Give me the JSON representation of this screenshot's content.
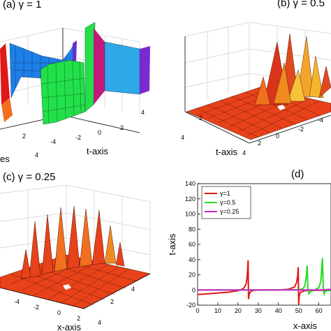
{
  "chart_data": [
    {
      "panel": "a",
      "type": "surface",
      "title": "(a) γ = 1",
      "ylabel": "t-axis",
      "xlabel_fragment": "es",
      "y_ticks": [
        "-4",
        "-2",
        "0",
        "2",
        "4"
      ],
      "x_ticks_visible": [
        "2",
        "4"
      ],
      "colors": {
        "green": "#22e04a",
        "blue": "#1e7fe6",
        "red": "#e01818"
      }
    },
    {
      "panel": "b",
      "type": "surface",
      "title": "(b) γ = 0.5",
      "ylabel": "t-axis",
      "y_ticks": [
        "-4",
        "-2",
        "0",
        "2",
        "4"
      ],
      "x_ticks_visible": [
        "2",
        "4"
      ],
      "colors": {
        "surface": "#e8421a",
        "peak": "#f5b52a"
      }
    },
    {
      "panel": "c",
      "type": "surface",
      "title": "(c) γ = 0.25",
      "xlabel": "x-axis",
      "x_ticks": [
        "-4",
        "-2",
        "0",
        "2",
        "4"
      ],
      "y_ticks_visible": [
        "2",
        "4"
      ],
      "colors": {
        "surface": "#e8421a",
        "peak": "#f07020"
      }
    },
    {
      "panel": "d",
      "type": "line",
      "title": "(d)",
      "xlabel": "x-axis",
      "ylabel": "t-axis",
      "y_ticks": [
        -20,
        0,
        20,
        40,
        60,
        80,
        100,
        120,
        140
      ],
      "x_ticks": [
        0,
        10,
        20,
        30,
        40,
        50,
        60
      ],
      "ylim": [
        -20,
        140
      ],
      "xlim": [
        0,
        66
      ],
      "legend": "top-left",
      "series": [
        {
          "name": "γ=1",
          "color": "#e01818",
          "x": [
            0,
            5,
            10,
            15,
            20,
            22,
            23,
            24,
            24.5,
            24.8,
            25.0,
            25.2,
            25.5,
            26,
            27,
            28,
            30,
            35,
            40,
            45,
            48,
            49,
            49.5,
            49.8,
            50.0,
            50.2,
            50.5,
            51,
            52,
            53,
            55,
            58,
            60,
            63,
            66
          ],
          "y": [
            -6,
            -5,
            -4,
            -3,
            -1,
            1,
            3,
            8,
            17,
            30,
            39,
            -12,
            -6,
            -3,
            -1,
            -0.5,
            0,
            0,
            0,
            1,
            4,
            10,
            19,
            30,
            -19,
            -10,
            -5,
            -3,
            -2,
            -1,
            -0.5,
            -0.5,
            -0.5,
            -0.5,
            -0.5
          ]
        },
        {
          "name": "γ=0.5",
          "color": "#22dd22",
          "x": [
            0,
            30,
            45,
            50,
            52,
            53,
            53.8,
            54.2,
            54.6,
            55,
            56,
            57,
            60,
            61,
            61.8,
            62.2,
            62.6,
            63,
            64,
            66
          ],
          "y": [
            0,
            0,
            0.2,
            0.5,
            1.5,
            5,
            18,
            32,
            0.5,
            -5,
            -2,
            -1,
            3,
            12,
            42,
            0.5,
            -5,
            -2,
            -1,
            -0.5
          ]
        },
        {
          "name": "γ=0.25",
          "color": "#cc22cc",
          "x": [
            0,
            20,
            40,
            50,
            60,
            62,
            64,
            66
          ],
          "y": [
            0,
            0,
            0,
            0,
            0,
            0,
            0.5,
            1
          ]
        }
      ]
    }
  ]
}
